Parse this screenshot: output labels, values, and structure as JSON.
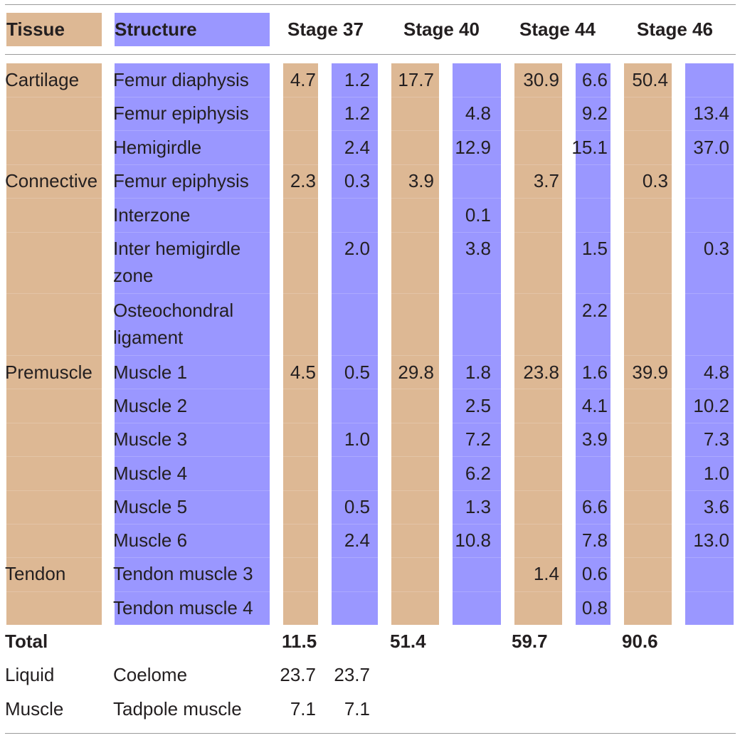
{
  "headers": {
    "tissue": "Tissue",
    "structure": "Structure",
    "stages": [
      "Stage 37",
      "Stage 40",
      "Stage 44",
      "Stage 46"
    ]
  },
  "rows": [
    {
      "tissue": "Cartilage",
      "structure": [
        "Femur diaphysis"
      ],
      "values": [
        "4.7",
        "1.2",
        "17.7",
        "",
        "30.9",
        "6.6",
        "50.4",
        ""
      ]
    },
    {
      "tissue": "",
      "structure": [
        "Femur epiphysis"
      ],
      "values": [
        "",
        "1.2",
        "",
        "4.8",
        "",
        "9.2",
        "",
        "13.4"
      ]
    },
    {
      "tissue": "",
      "structure": [
        "Hemigirdle"
      ],
      "values": [
        "",
        "2.4",
        "",
        "12.9",
        "",
        "15.1",
        "",
        "37.0"
      ]
    },
    {
      "tissue": "Connective",
      "structure": [
        "Femur epiphysis"
      ],
      "values": [
        "2.3",
        "0.3",
        "3.9",
        "",
        "3.7",
        "",
        "0.3",
        ""
      ]
    },
    {
      "tissue": "",
      "structure": [
        "Interzone"
      ],
      "values": [
        "",
        "",
        "",
        "0.1",
        "",
        "",
        "",
        ""
      ]
    },
    {
      "tissue": "",
      "structure": [
        "Inter hemigirdle",
        "zone"
      ],
      "values": [
        "",
        "2.0",
        "",
        "3.8",
        "",
        "1.5",
        "",
        "0.3"
      ]
    },
    {
      "tissue": "",
      "structure": [
        "Osteochondral",
        "ligament"
      ],
      "values": [
        "",
        "",
        "",
        "",
        "",
        "2.2",
        "",
        ""
      ]
    },
    {
      "tissue": "Premuscle",
      "structure": [
        "Muscle 1"
      ],
      "values": [
        "4.5",
        "0.5",
        "29.8",
        "1.8",
        "23.8",
        "1.6",
        "39.9",
        "4.8"
      ]
    },
    {
      "tissue": "",
      "structure": [
        "Muscle 2"
      ],
      "values": [
        "",
        "",
        "",
        "2.5",
        "",
        "4.1",
        "",
        "10.2"
      ]
    },
    {
      "tissue": "",
      "structure": [
        "Muscle 3"
      ],
      "values": [
        "",
        "1.0",
        "",
        "7.2",
        "",
        "3.9",
        "",
        "7.3"
      ]
    },
    {
      "tissue": "",
      "structure": [
        "Muscle 4"
      ],
      "values": [
        "",
        "",
        "",
        "6.2",
        "",
        "",
        "",
        "1.0"
      ]
    },
    {
      "tissue": "",
      "structure": [
        "Muscle 5"
      ],
      "values": [
        "",
        "0.5",
        "",
        "1.3",
        "",
        "6.6",
        "",
        "3.6"
      ]
    },
    {
      "tissue": "",
      "structure": [
        "Muscle 6"
      ],
      "values": [
        "",
        "2.4",
        "",
        "10.8",
        "",
        "7.8",
        "",
        "13.0"
      ]
    },
    {
      "tissue": "Tendon",
      "structure": [
        "Tendon muscle 3"
      ],
      "values": [
        "",
        "",
        "",
        "",
        "1.4",
        "0.6",
        "",
        ""
      ]
    },
    {
      "tissue": "",
      "structure": [
        "Tendon muscle 4"
      ],
      "values": [
        "",
        "",
        "",
        "",
        "",
        "0.8",
        "",
        ""
      ]
    }
  ],
  "total": {
    "label": "Total",
    "values": [
      "11.5",
      "",
      "51.4",
      "",
      "59.7",
      "",
      "90.6",
      ""
    ]
  },
  "extra_rows": [
    {
      "tissue": "Liquid",
      "structure": "Coelome",
      "values": [
        "23.7",
        "23.7",
        "",
        "",
        "",
        "",
        "",
        ""
      ]
    },
    {
      "tissue": "Muscle",
      "structure": "Tadpole muscle",
      "values": [
        "7.1",
        "7.1",
        "",
        "",
        "",
        "",
        "",
        ""
      ]
    }
  ],
  "colors": {
    "tan": "#ddb894",
    "blue": "#9a97ff",
    "text": "#231f20",
    "rule": "#9a9a9a"
  }
}
